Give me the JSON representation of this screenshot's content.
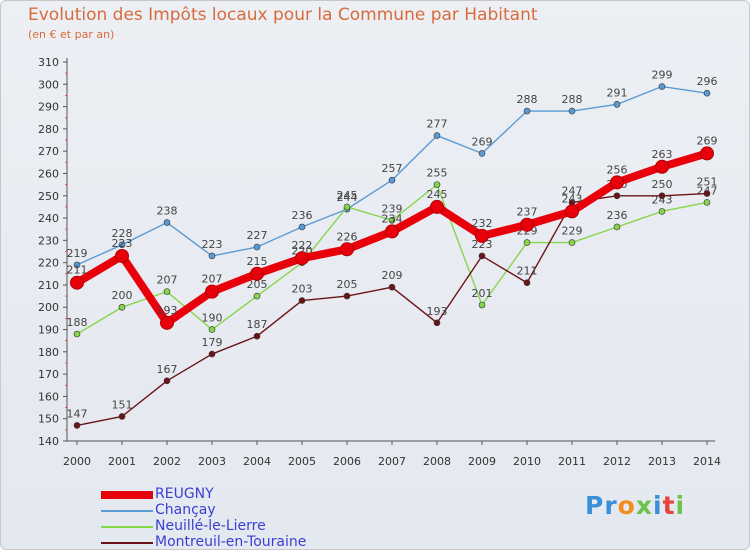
{
  "chart_data": {
    "type": "line",
    "title": "Evolution des Impôts locaux pour la Commune par Habitant",
    "subtitle": "(en € et par an)",
    "x": [
      "2000",
      "2001",
      "2002",
      "2003",
      "2004",
      "2005",
      "2006",
      "2007",
      "2008",
      "2009",
      "2010",
      "2011",
      "2012",
      "2013",
      "2014"
    ],
    "ylim": [
      140,
      310
    ],
    "yticks": [
      140,
      150,
      160,
      170,
      180,
      190,
      200,
      210,
      220,
      230,
      240,
      250,
      260,
      270,
      280,
      290,
      300,
      310
    ],
    "grid": false,
    "legend_position": "bottom-left",
    "series": [
      {
        "name": "REUGNY",
        "color": "#e8000b",
        "values": [
          211,
          223,
          193,
          207,
          215,
          222,
          226,
          234,
          245,
          232,
          237,
          243,
          256,
          263,
          269
        ]
      },
      {
        "name": "Chançay",
        "color": "#5b9bd5",
        "values": [
          219,
          228,
          238,
          223,
          227,
          236,
          244,
          257,
          277,
          269,
          288,
          288,
          291,
          299,
          296
        ]
      },
      {
        "name": "Neuillé-le-Lierre",
        "color": "#86d64a",
        "values": [
          188,
          200,
          207,
          190,
          205,
          220,
          245,
          239,
          255,
          201,
          229,
          229,
          236,
          243,
          247
        ]
      },
      {
        "name": "Montreuil-en-Touraine",
        "color": "#6b1418",
        "values": [
          147,
          151,
          167,
          179,
          187,
          203,
          205,
          209,
          193,
          223,
          211,
          247,
          250,
          250,
          251
        ]
      }
    ]
  },
  "logo": {
    "parts": [
      {
        "text": "Pr",
        "color": "#3a8fd8"
      },
      {
        "text": "o",
        "color": "#f28c1e"
      },
      {
        "text": "x",
        "color": "#6cc24a"
      },
      {
        "text": "i",
        "color": "#3a8fd8"
      },
      {
        "text": "t",
        "color": "#e8433a"
      },
      {
        "text": "i",
        "color": "#6cc24a"
      }
    ]
  }
}
